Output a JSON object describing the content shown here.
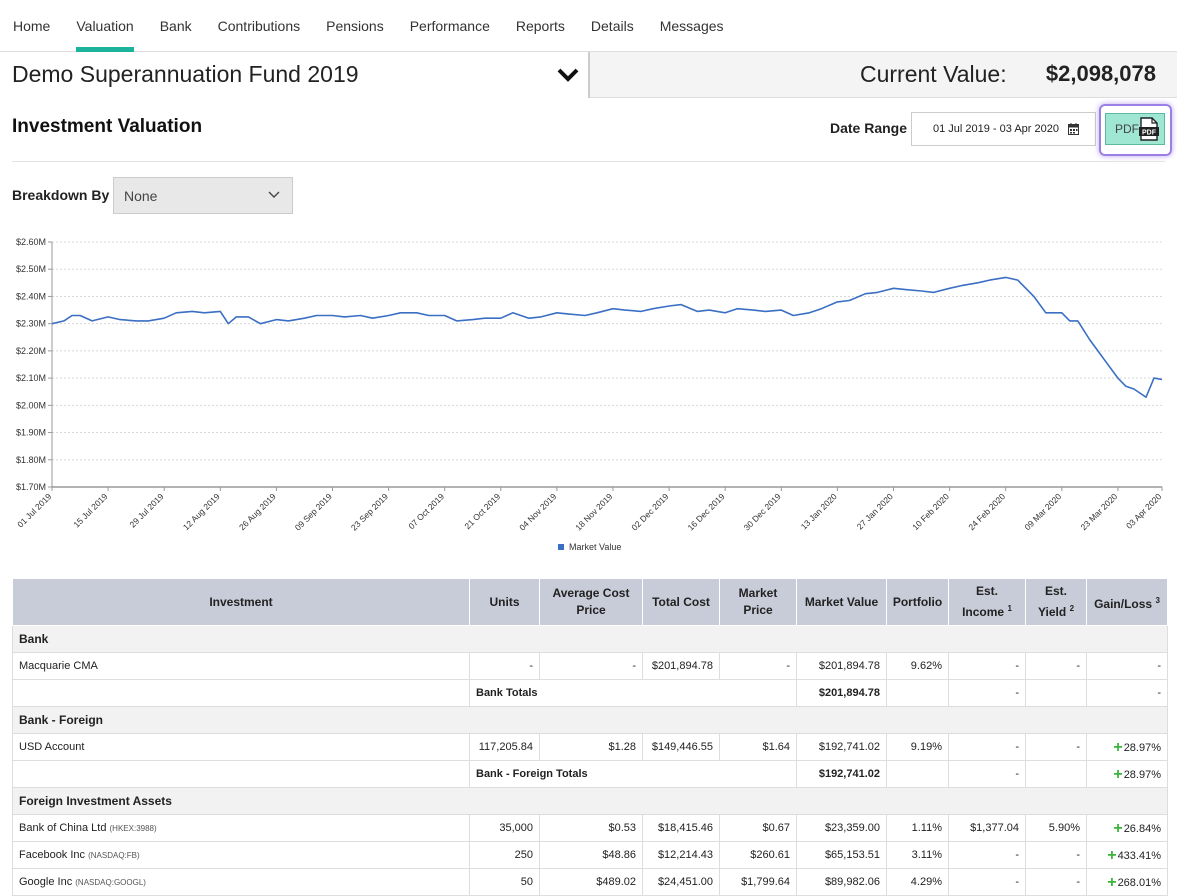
{
  "nav": {
    "items": [
      "Home",
      "Valuation",
      "Bank",
      "Contributions",
      "Pensions",
      "Performance",
      "Reports",
      "Details",
      "Messages"
    ],
    "active_index": 1
  },
  "fund": {
    "name": "Demo Superannuation Fund 2019",
    "current_value_label": "Current Value:",
    "current_value": "$2,098,078"
  },
  "page": {
    "title": "Investment Valuation",
    "date_range_label": "Date Range",
    "date_range_value": "01 Jul 2019 - 03 Apr 2020",
    "pdf_label": "PDF",
    "pdf_icon_text": "PDF",
    "breakdown_label": "Breakdown By",
    "breakdown_value": "None"
  },
  "icons": {
    "fund_dropdown": "chevron-down-icon",
    "date_range": "calendar-icon",
    "pdf": "pdf-file-icon",
    "breakdown": "chevron-down-icon"
  },
  "colors": {
    "accent": "#1bb39b",
    "line": "#3a6fc4",
    "gain": "#3cb43c",
    "pdf_button": "#9fe6d3",
    "table_header": "#c8ccd8"
  },
  "chart_data": {
    "type": "line",
    "ylim": [
      1700000,
      2600000
    ],
    "y_ticks": [
      "$1.70M",
      "$1.80M",
      "$1.90M",
      "$2.00M",
      "$2.10M",
      "$2.20M",
      "$2.30M",
      "$2.40M",
      "$2.50M",
      "$2.60M"
    ],
    "y_tick_values": [
      1700000,
      1800000,
      1900000,
      2000000,
      2100000,
      2200000,
      2300000,
      2400000,
      2500000,
      2600000
    ],
    "x_range": [
      "2019-07-01",
      "2020-04-03"
    ],
    "x_ticks": [
      "01 Jul 2019",
      "15 Jul 2019",
      "29 Jul 2019",
      "12 Aug 2019",
      "26 Aug 2019",
      "09 Sep 2019",
      "23 Sep 2019",
      "07 Oct 2019",
      "21 Oct 2019",
      "04 Nov 2019",
      "18 Nov 2019",
      "02 Dec 2019",
      "16 Dec 2019",
      "30 Dec 2019",
      "13 Jan 2020",
      "27 Jan 2020",
      "10 Feb 2020",
      "24 Feb 2020",
      "09 Mar 2020",
      "23 Mar 2020",
      "03 Apr 2020"
    ],
    "x_tick_dates": [
      "2019-07-01",
      "2019-07-15",
      "2019-07-29",
      "2019-08-12",
      "2019-08-26",
      "2019-09-09",
      "2019-09-23",
      "2019-10-07",
      "2019-10-21",
      "2019-11-04",
      "2019-11-18",
      "2019-12-02",
      "2019-12-16",
      "2019-12-30",
      "2020-01-13",
      "2020-01-27",
      "2020-02-10",
      "2020-02-24",
      "2020-03-09",
      "2020-03-23",
      "2020-04-03"
    ],
    "grid": true,
    "legend_position": "bottom",
    "series": [
      {
        "name": "Market Value",
        "x": [
          "2019-07-01",
          "2019-07-04",
          "2019-07-06",
          "2019-07-08",
          "2019-07-11",
          "2019-07-15",
          "2019-07-18",
          "2019-07-22",
          "2019-07-25",
          "2019-07-29",
          "2019-08-01",
          "2019-08-05",
          "2019-08-08",
          "2019-08-12",
          "2019-08-14",
          "2019-08-16",
          "2019-08-19",
          "2019-08-22",
          "2019-08-26",
          "2019-08-29",
          "2019-09-02",
          "2019-09-05",
          "2019-09-09",
          "2019-09-12",
          "2019-09-16",
          "2019-09-19",
          "2019-09-23",
          "2019-09-26",
          "2019-09-30",
          "2019-10-03",
          "2019-10-07",
          "2019-10-10",
          "2019-10-14",
          "2019-10-17",
          "2019-10-21",
          "2019-10-24",
          "2019-10-28",
          "2019-10-31",
          "2019-11-04",
          "2019-11-07",
          "2019-11-11",
          "2019-11-14",
          "2019-11-18",
          "2019-11-21",
          "2019-11-25",
          "2019-11-28",
          "2019-12-02",
          "2019-12-05",
          "2019-12-09",
          "2019-12-12",
          "2019-12-16",
          "2019-12-19",
          "2019-12-23",
          "2019-12-26",
          "2019-12-30",
          "2020-01-02",
          "2020-01-06",
          "2020-01-09",
          "2020-01-13",
          "2020-01-16",
          "2020-01-20",
          "2020-01-23",
          "2020-01-27",
          "2020-01-30",
          "2020-02-03",
          "2020-02-06",
          "2020-02-10",
          "2020-02-13",
          "2020-02-17",
          "2020-02-20",
          "2020-02-24",
          "2020-02-27",
          "2020-03-02",
          "2020-03-05",
          "2020-03-09",
          "2020-03-11",
          "2020-03-13",
          "2020-03-16",
          "2020-03-18",
          "2020-03-20",
          "2020-03-23",
          "2020-03-25",
          "2020-03-27",
          "2020-03-30",
          "2020-04-01",
          "2020-04-03"
        ],
        "y": [
          2300000,
          2310000,
          2330000,
          2330000,
          2310000,
          2325000,
          2315000,
          2310000,
          2310000,
          2320000,
          2340000,
          2345000,
          2340000,
          2345000,
          2300000,
          2325000,
          2325000,
          2300000,
          2315000,
          2310000,
          2320000,
          2330000,
          2330000,
          2325000,
          2330000,
          2320000,
          2330000,
          2340000,
          2340000,
          2330000,
          2330000,
          2310000,
          2315000,
          2320000,
          2320000,
          2340000,
          2320000,
          2325000,
          2340000,
          2335000,
          2330000,
          2340000,
          2355000,
          2350000,
          2345000,
          2355000,
          2365000,
          2370000,
          2345000,
          2350000,
          2340000,
          2355000,
          2350000,
          2345000,
          2350000,
          2330000,
          2340000,
          2355000,
          2380000,
          2385000,
          2410000,
          2415000,
          2430000,
          2425000,
          2420000,
          2415000,
          2430000,
          2440000,
          2450000,
          2460000,
          2470000,
          2460000,
          2400000,
          2340000,
          2340000,
          2310000,
          2310000,
          2240000,
          2200000,
          2160000,
          2100000,
          2070000,
          2060000,
          2030000,
          2100000,
          2095000
        ]
      }
    ]
  },
  "table": {
    "headers": {
      "investment": "Investment",
      "units": "Units",
      "avg_cost_1": "Average Cost",
      "avg_cost_2": "Price",
      "total_cost": "Total Cost",
      "market_price_1": "Market",
      "market_price_2": "Price",
      "market_value": "Market Value",
      "portfolio": "Portfolio",
      "est_income_1": "Est.",
      "est_income_2": "Income",
      "est_income_sup": "1",
      "est_yield_1": "Est.",
      "est_yield_2": "Yield",
      "est_yield_sup": "2",
      "gain_loss": "Gain/Loss",
      "gain_loss_sup": "3"
    },
    "groups": {
      "bank": "Bank",
      "bank_foreign": "Bank - Foreign",
      "foreign_assets": "Foreign Investment Assets"
    },
    "rows": {
      "macquarie": {
        "name": "Macquarie CMA",
        "ticker": "",
        "units": "-",
        "avg_cost": "-",
        "total_cost": "$201,894.78",
        "market_price": "-",
        "market_value": "$201,894.78",
        "portfolio": "9.62%",
        "est_income": "-",
        "est_yield": "-",
        "gain_loss": "-"
      },
      "bank_totals": {
        "label": "Bank Totals",
        "market_value": "$201,894.78",
        "est_income": "-",
        "gain_loss": "-"
      },
      "usd": {
        "name": "USD Account",
        "ticker": "",
        "units": "117,205.84",
        "avg_cost": "$1.28",
        "total_cost": "$149,446.55",
        "market_price": "$1.64",
        "market_value": "$192,741.02",
        "portfolio": "9.19%",
        "est_income": "-",
        "est_yield": "-",
        "gain_loss": "28.97%"
      },
      "bank_foreign_totals": {
        "label": "Bank - Foreign Totals",
        "market_value": "$192,741.02",
        "est_income": "-",
        "gain_loss": "28.97%"
      },
      "boc": {
        "name": "Bank of China Ltd",
        "ticker": "(HKEX:3988)",
        "units": "35,000",
        "avg_cost": "$0.53",
        "total_cost": "$18,415.46",
        "market_price": "$0.67",
        "market_value": "$23,359.00",
        "portfolio": "1.11%",
        "est_income": "$1,377.04",
        "est_yield": "5.90%",
        "gain_loss": "26.84%"
      },
      "fb": {
        "name": "Facebook Inc",
        "ticker": "(NASDAQ:FB)",
        "units": "250",
        "avg_cost": "$48.86",
        "total_cost": "$12,214.43",
        "market_price": "$260.61",
        "market_value": "$65,153.51",
        "portfolio": "3.11%",
        "est_income": "-",
        "est_yield": "-",
        "gain_loss": "433.41%"
      },
      "goog": {
        "name": "Google Inc",
        "ticker": "(NASDAQ:GOOGL)",
        "units": "50",
        "avg_cost": "$489.02",
        "total_cost": "$24,451.00",
        "market_price": "$1,799.64",
        "market_value": "$89,982.06",
        "portfolio": "4.29%",
        "est_income": "-",
        "est_yield": "-",
        "gain_loss": "268.01%"
      }
    }
  }
}
